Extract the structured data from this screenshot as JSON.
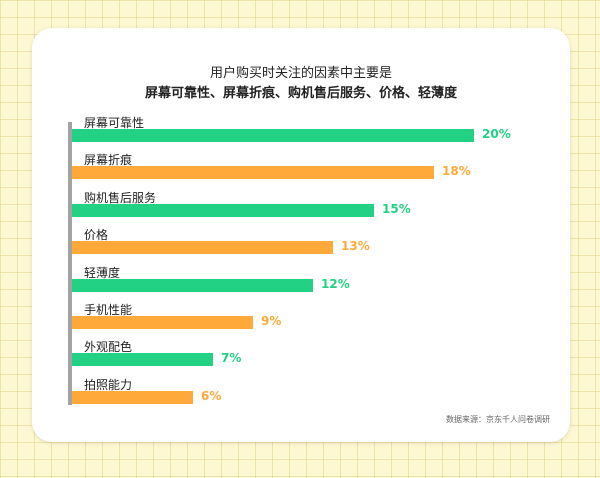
{
  "chart_data": {
    "type": "bar",
    "orientation": "horizontal",
    "title": "用户购买时关注的因素中主要是",
    "subtitle": "屏幕可靠性、屏幕折痕、购机售后服务、价格、轻薄度",
    "categories": [
      "屏幕可靠性",
      "屏幕折痕",
      "购机售后服务",
      "价格",
      "轻薄度",
      "手机性能",
      "外观配色",
      "拍照能力"
    ],
    "values": [
      20,
      18,
      15,
      13,
      12,
      9,
      7,
      6
    ],
    "value_labels": [
      "20%",
      "18%",
      "15%",
      "13%",
      "12%",
      "9%",
      "7%",
      "6%"
    ],
    "unit": "%",
    "xlim": [
      0,
      20
    ],
    "grid": false,
    "colors": {
      "green": "#22d184",
      "orange": "#ffa93a",
      "pattern": [
        "green",
        "orange",
        "green",
        "orange",
        "green",
        "orange",
        "green",
        "orange"
      ]
    }
  },
  "source": "数据来源：京东千人问卷调研"
}
